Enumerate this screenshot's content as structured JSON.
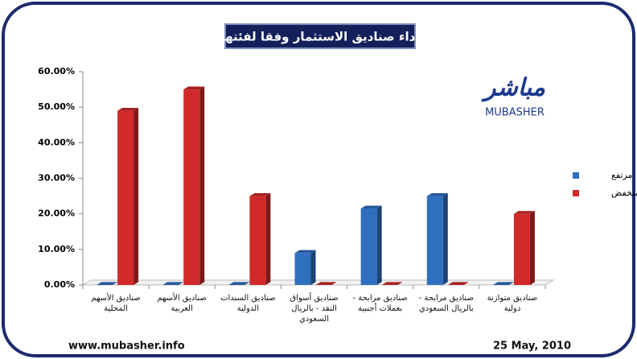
{
  "chart_data": {
    "type": "bar3d",
    "title": "اداء صناديق الاستثمار وفقا لفئتها",
    "categories": [
      "صناديق الأسهم المحلية",
      "صناديق الأسهم العربية",
      "صناديق السندات الدولية",
      "صناديق أسواق النقد - بالريال السعودي",
      "صناديق مرابحة - بعملات أجنبية",
      "صناديق مرابحة - بالريال السعودي",
      "صناديق متوازنة دولية"
    ],
    "series": [
      {
        "name": "مرتفع",
        "color": "#2f6fc0",
        "values": [
          0,
          0,
          0,
          9,
          21.5,
          25,
          0
        ]
      },
      {
        "name": "منخفض",
        "color": "#d02a2a",
        "values": [
          49,
          55,
          25,
          0,
          0,
          0,
          20
        ]
      }
    ],
    "ylim": [
      0,
      60
    ],
    "yticks": [
      {
        "value": 0,
        "label": "0.00%"
      },
      {
        "value": 10,
        "label": "10.00%"
      },
      {
        "value": 20,
        "label": "20.00%"
      },
      {
        "value": 30,
        "label": "30.00%"
      },
      {
        "value": 40,
        "label": "40.00%"
      },
      {
        "value": 50,
        "label": "50.00%"
      },
      {
        "value": 60,
        "label": "60.00%"
      }
    ],
    "grid": false,
    "legend": "right"
  },
  "logo": {
    "arabic": "مباشر",
    "latin": "MUBASHER"
  },
  "footer": {
    "website": "www.mubasher.info",
    "date": "25 May, 2010"
  }
}
